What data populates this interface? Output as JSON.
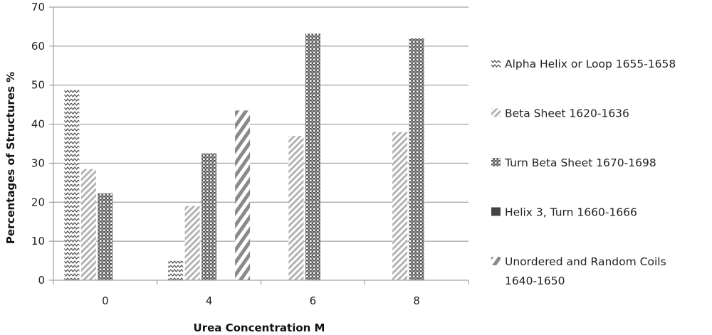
{
  "chart_data": {
    "type": "bar",
    "xlabel": "Urea Concentration M",
    "ylabel": "Percentages of Structures %",
    "categories": [
      "0",
      "4",
      "6",
      "8"
    ],
    "ylim": [
      0,
      70
    ],
    "yticks": [
      0,
      10,
      20,
      30,
      40,
      50,
      60,
      70
    ],
    "grid": "horizontal",
    "legend_position": "right",
    "series": [
      {
        "name": "Alpha Helix or Loop 1655-1658",
        "pattern": "zigzag",
        "values": [
          49,
          5,
          0,
          0
        ]
      },
      {
        "name": "Beta Sheet 1620-1636",
        "pattern": "diagonal-thin",
        "values": [
          28.5,
          19,
          37,
          38
        ]
      },
      {
        "name": "Turn Beta Sheet 1670-1698",
        "pattern": "crosshatch",
        "values": [
          22.3,
          32.5,
          63.2,
          62
        ]
      },
      {
        "name": "Helix 3, Turn 1660-1666",
        "pattern": "solid",
        "values": [
          0,
          0,
          0,
          0
        ]
      },
      {
        "name": "Unordered and Random Coils 1640-1650",
        "name_lines": [
          "Unordered and Random Coils",
          "1640-1650"
        ],
        "pattern": "diagonal-wide",
        "values": [
          0,
          43.5,
          0,
          0
        ]
      }
    ]
  }
}
